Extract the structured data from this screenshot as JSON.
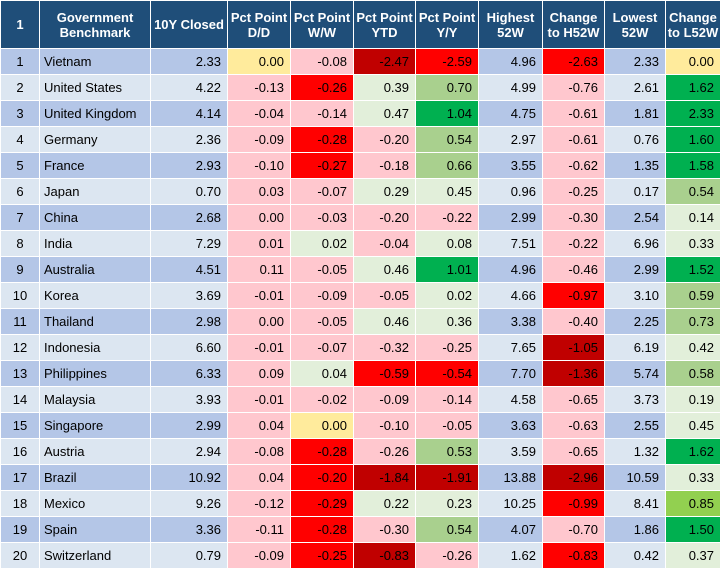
{
  "table": {
    "headers": [
      "1",
      "Government Benchmark",
      "10Y Closed",
      "Pct Point D/D",
      "Pct Point W/W",
      "Pct Point YTD",
      "Pct Point Y/Y",
      "Highest 52W",
      "Change to H52W",
      "Lowest 52W",
      "Change to L52W"
    ],
    "rows": [
      [
        "1",
        "Vietnam",
        "2.33",
        "0.00",
        "-0.08",
        "-2.47",
        "-2.59",
        "4.96",
        "-2.63",
        "2.33",
        "0.00"
      ],
      [
        "2",
        "United States",
        "4.22",
        "-0.13",
        "-0.26",
        "0.39",
        "0.70",
        "4.99",
        "-0.76",
        "2.61",
        "1.62"
      ],
      [
        "3",
        "United Kingdom",
        "4.14",
        "-0.04",
        "-0.14",
        "0.47",
        "1.04",
        "4.75",
        "-0.61",
        "1.81",
        "2.33"
      ],
      [
        "4",
        "Germany",
        "2.36",
        "-0.09",
        "-0.28",
        "-0.20",
        "0.54",
        "2.97",
        "-0.61",
        "0.76",
        "1.60"
      ],
      [
        "5",
        "France",
        "2.93",
        "-0.10",
        "-0.27",
        "-0.18",
        "0.66",
        "3.55",
        "-0.62",
        "1.35",
        "1.58"
      ],
      [
        "6",
        "Japan",
        "0.70",
        "0.03",
        "-0.07",
        "0.29",
        "0.45",
        "0.96",
        "-0.25",
        "0.17",
        "0.54"
      ],
      [
        "7",
        "China",
        "2.68",
        "0.00",
        "-0.03",
        "-0.20",
        "-0.22",
        "2.99",
        "-0.30",
        "2.54",
        "0.14"
      ],
      [
        "8",
        "India",
        "7.29",
        "0.01",
        "0.02",
        "-0.04",
        "0.08",
        "7.51",
        "-0.22",
        "6.96",
        "0.33"
      ],
      [
        "9",
        "Australia",
        "4.51",
        "0.11",
        "-0.05",
        "0.46",
        "1.01",
        "4.96",
        "-0.46",
        "2.99",
        "1.52"
      ],
      [
        "10",
        "Korea",
        "3.69",
        "-0.01",
        "-0.09",
        "-0.05",
        "0.02",
        "4.66",
        "-0.97",
        "3.10",
        "0.59"
      ],
      [
        "11",
        "Thailand",
        "2.98",
        "0.00",
        "-0.05",
        "0.46",
        "0.36",
        "3.38",
        "-0.40",
        "2.25",
        "0.73"
      ],
      [
        "12",
        "Indonesia",
        "6.60",
        "-0.01",
        "-0.07",
        "-0.32",
        "-0.25",
        "7.65",
        "-1.05",
        "6.19",
        "0.42"
      ],
      [
        "13",
        "Philippines",
        "6.33",
        "0.09",
        "0.04",
        "-0.59",
        "-0.54",
        "7.70",
        "-1.36",
        "5.74",
        "0.58"
      ],
      [
        "14",
        "Malaysia",
        "3.93",
        "-0.01",
        "-0.02",
        "-0.09",
        "-0.14",
        "4.58",
        "-0.65",
        "3.73",
        "0.19"
      ],
      [
        "15",
        "Singapore",
        "2.99",
        "0.04",
        "0.00",
        "-0.10",
        "-0.05",
        "3.63",
        "-0.63",
        "2.55",
        "0.45"
      ],
      [
        "16",
        "Austria",
        "2.94",
        "-0.08",
        "-0.28",
        "-0.26",
        "0.53",
        "3.59",
        "-0.65",
        "1.32",
        "1.62"
      ],
      [
        "17",
        "Brazil",
        "10.92",
        "0.04",
        "-0.20",
        "-1.84",
        "-1.91",
        "13.88",
        "-2.96",
        "10.59",
        "0.33"
      ],
      [
        "18",
        "Mexico",
        "9.26",
        "-0.12",
        "-0.29",
        "0.22",
        "0.23",
        "10.25",
        "-0.99",
        "8.41",
        "0.85"
      ],
      [
        "19",
        "Spain",
        "3.36",
        "-0.11",
        "-0.28",
        "-0.30",
        "0.54",
        "4.07",
        "-0.70",
        "1.86",
        "1.50"
      ],
      [
        "20",
        "Switzerland",
        "0.79",
        "-0.09",
        "-0.25",
        "-0.83",
        "-0.26",
        "1.62",
        "-0.83",
        "0.42",
        "0.37"
      ]
    ],
    "cell_colors": {
      "3": [
        "#ffeb9c",
        "#ffc7ce",
        "#ffc7ce",
        "#ffc7ce",
        "#ffc7ce",
        "#ffc7ce",
        "#ffc7ce",
        "#ffc7ce",
        "#ffc7ce",
        "#ffc7ce",
        "#ffc7ce",
        "#ffc7ce",
        "#ffc7ce",
        "#ffc7ce",
        "#ffc7ce",
        "#ffc7ce",
        "#ffc7ce",
        "#ffc7ce",
        "#ffc7ce",
        "#ffc7ce"
      ],
      "4": [
        "#ffc7ce",
        "#ff0000",
        "#ffc7ce",
        "#ff0000",
        "#ff0000",
        "#ffc7ce",
        "#ffc7ce",
        "#e2efda",
        "#ffc7ce",
        "#ffc7ce",
        "#ffc7ce",
        "#ffc7ce",
        "#e2efda",
        "#ffc7ce",
        "#ffeb9c",
        "#ff0000",
        "#ff0000",
        "#ff0000",
        "#ff0000",
        "#ff0000"
      ],
      "5": [
        "#c00000",
        "#e2efda",
        "#e2efda",
        "#ffc7ce",
        "#ffc7ce",
        "#e2efda",
        "#ffc7ce",
        "#ffc7ce",
        "#e2efda",
        "#ffc7ce",
        "#e2efda",
        "#ffc7ce",
        "#ff0000",
        "#ffc7ce",
        "#ffc7ce",
        "#ffc7ce",
        "#c00000",
        "#e2efda",
        "#ffc7ce",
        "#c00000"
      ],
      "6": [
        "#ff0000",
        "#a9d08e",
        "#00b050",
        "#a9d08e",
        "#a9d08e",
        "#e2efda",
        "#ffc7ce",
        "#e2efda",
        "#00b050",
        "#e2efda",
        "#e2efda",
        "#ffc7ce",
        "#ff0000",
        "#ffc7ce",
        "#ffc7ce",
        "#a9d08e",
        "#c00000",
        "#e2efda",
        "#a9d08e",
        "#ffc7ce"
      ],
      "8": [
        "#ff0000",
        "#ffc7ce",
        "#ffc7ce",
        "#ffc7ce",
        "#ffc7ce",
        "#ffc7ce",
        "#ffc7ce",
        "#ffc7ce",
        "#ffc7ce",
        "#ff0000",
        "#ffc7ce",
        "#c00000",
        "#c00000",
        "#ffc7ce",
        "#ffc7ce",
        "#ffc7ce",
        "#c00000",
        "#ff0000",
        "#ffc7ce",
        "#ff0000"
      ],
      "10": [
        "#ffeb9c",
        "#00b050",
        "#00b050",
        "#00b050",
        "#00b050",
        "#a9d08e",
        "#e2efda",
        "#e2efda",
        "#00b050",
        "#a9d08e",
        "#a9d08e",
        "#e2efda",
        "#a9d08e",
        "#e2efda",
        "#e2efda",
        "#00b050",
        "#e2efda",
        "#92d050",
        "#00b050",
        "#e2efda"
      ]
    }
  }
}
